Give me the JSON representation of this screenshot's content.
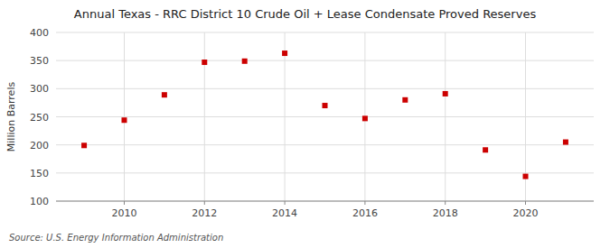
{
  "chart_data": {
    "type": "scatter",
    "title": "Annual Texas - RRC District 10 Crude Oil + Lease Condensate Proved Reserves",
    "y_label": "Million Barrels",
    "annotations": [
      "Source: U.S. Energy Information Administration"
    ],
    "x": [
      2009,
      2010,
      2011,
      2012,
      2013,
      2014,
      2015,
      2016,
      2017,
      2018,
      2019,
      2020,
      2021
    ],
    "values": [
      199,
      244,
      289,
      347,
      349,
      363,
      270,
      247,
      280,
      291,
      191,
      144,
      205
    ],
    "color": "#cc0000",
    "marker": "square",
    "xlim": [
      2008.3,
      2021.7
    ],
    "xticks": [
      2010,
      2012,
      2014,
      2016,
      2018,
      2020
    ],
    "ylim": [
      100,
      400
    ],
    "yticks": [
      100,
      150,
      200,
      250,
      300,
      350,
      400
    ],
    "grid": true
  }
}
